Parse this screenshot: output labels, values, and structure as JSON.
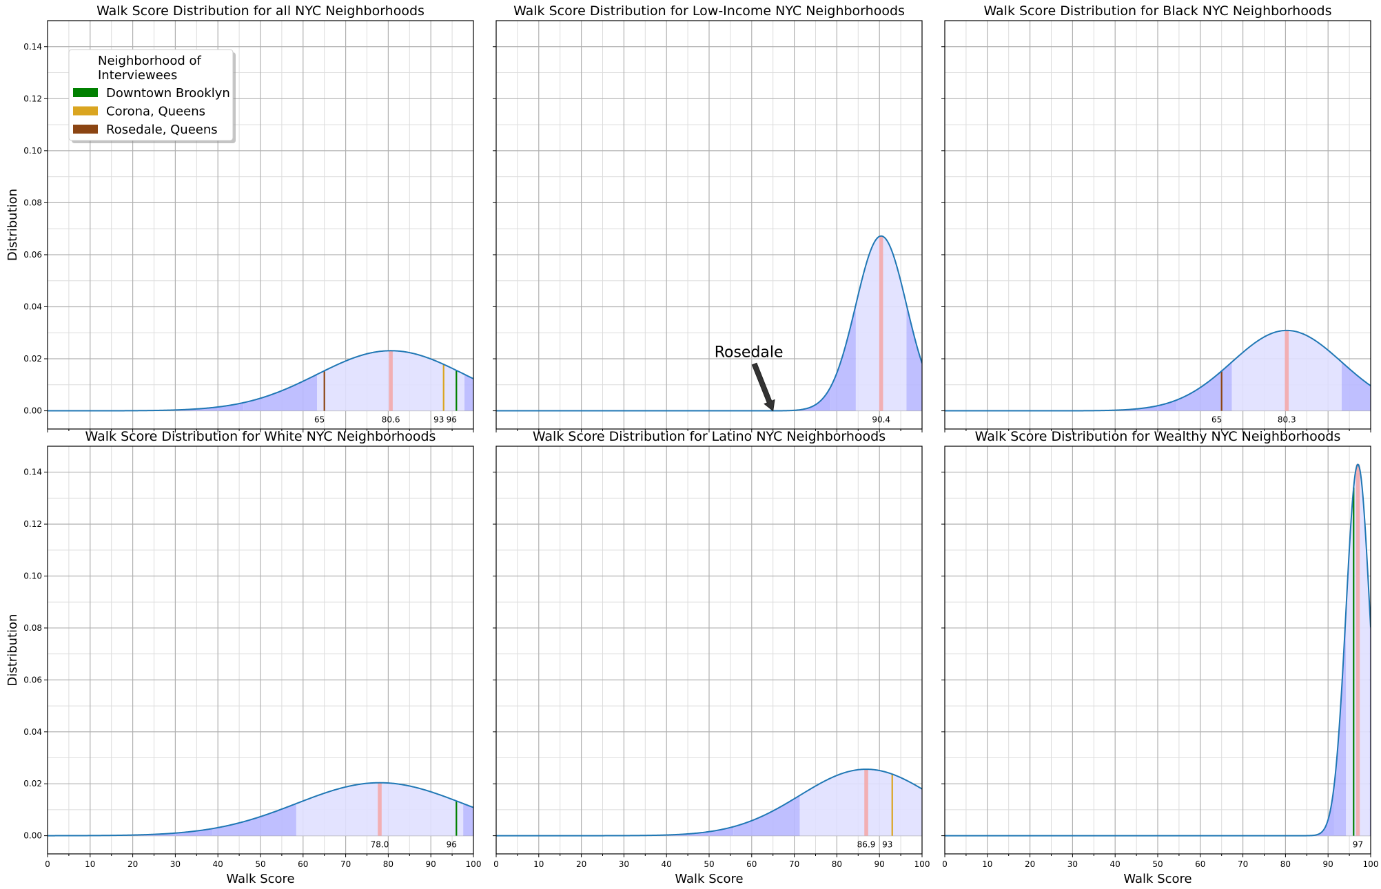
{
  "legend": {
    "title_line1": "Neighborhood of",
    "title_line2": "Interviewees",
    "placement": "upper-left of first panel",
    "entries": [
      {
        "label": "Downtown Brooklyn",
        "color": "#008000"
      },
      {
        "label": "Corona, Queens",
        "color": "#DAA520"
      },
      {
        "label": "Rosedale, Queens",
        "color": "#8B4513"
      }
    ]
  },
  "colors": {
    "curve": "#1f77b4",
    "fill_inner": "#e0e0ff",
    "fill_outer": "#b8b8ff",
    "mean_band": "#f4a6a6"
  },
  "chart_data": [
    {
      "type": "area",
      "title": "Walk Score Distribution for all NYC Neighborhoods",
      "xlabel": "",
      "ylabel": "Distribution",
      "xlim": [
        0,
        100
      ],
      "ylim": [
        -0.007,
        0.15
      ],
      "xticks": [
        0,
        10,
        20,
        30,
        40,
        50,
        60,
        70,
        80,
        90,
        100
      ],
      "yticks": [
        0.0,
        0.02,
        0.04,
        0.06,
        0.08,
        0.1,
        0.12,
        0.14
      ],
      "grid": true,
      "distribution": {
        "mean": 80.6,
        "sd": 17.3,
        "peak": 0.0231,
        "band_edges": [
          46.0,
          63.3,
          97.9
        ]
      },
      "mean_label": "80.6",
      "markers": [
        {
          "x": 65,
          "label": "65",
          "color": "#8B4513"
        },
        {
          "x": 93,
          "label": "93",
          "color": "#DAA520"
        },
        {
          "x": 96,
          "label": "96",
          "color": "#008000"
        }
      ],
      "show_xtick_labels": false,
      "show_ytick_labels": true
    },
    {
      "type": "area",
      "title": "Walk Score Distribution for Low-Income NYC Neighborhoods",
      "xlabel": "",
      "ylabel": "",
      "xlim": [
        0,
        100
      ],
      "ylim": [
        -0.007,
        0.15
      ],
      "xticks": [
        0,
        10,
        20,
        30,
        40,
        50,
        60,
        70,
        80,
        90,
        100
      ],
      "yticks": [
        0.0,
        0.02,
        0.04,
        0.06,
        0.08,
        0.1,
        0.12,
        0.14
      ],
      "grid": true,
      "distribution": {
        "mean": 90.4,
        "sd": 5.95,
        "peak": 0.0672,
        "band_edges": [
          78.5,
          84.45,
          96.35
        ]
      },
      "mean_label": "90.4",
      "markers": [],
      "annotation": {
        "text": "Rosedale",
        "x": 65,
        "y": 0.0
      },
      "show_xtick_labels": false,
      "show_ytick_labels": false
    },
    {
      "type": "area",
      "title": "Walk Score Distribution for Black NYC Neighborhoods",
      "xlabel": "",
      "ylabel": "",
      "xlim": [
        0,
        100
      ],
      "ylim": [
        -0.007,
        0.15
      ],
      "xticks": [
        0,
        10,
        20,
        30,
        40,
        50,
        60,
        70,
        80,
        90,
        100
      ],
      "yticks": [
        0.0,
        0.02,
        0.04,
        0.06,
        0.08,
        0.1,
        0.12,
        0.14
      ],
      "grid": true,
      "distribution": {
        "mean": 80.3,
        "sd": 12.9,
        "peak": 0.0309,
        "band_edges": [
          54.5,
          67.4,
          93.2
        ]
      },
      "mean_label": "80.3",
      "markers": [
        {
          "x": 65,
          "label": "65",
          "color": "#8B4513"
        }
      ],
      "show_xtick_labels": false,
      "show_ytick_labels": false
    },
    {
      "type": "area",
      "title": "Walk Score Distribution for White NYC Neighborhoods",
      "xlabel": "Walk Score",
      "ylabel": "Distribution",
      "xlim": [
        0,
        100
      ],
      "ylim": [
        -0.007,
        0.15
      ],
      "xticks": [
        0,
        10,
        20,
        30,
        40,
        50,
        60,
        70,
        80,
        90,
        100
      ],
      "yticks": [
        0.0,
        0.02,
        0.04,
        0.06,
        0.08,
        0.1,
        0.12,
        0.14
      ],
      "grid": true,
      "distribution": {
        "mean": 78.0,
        "sd": 19.6,
        "peak": 0.0204,
        "band_edges": [
          38.8,
          58.4,
          97.6
        ]
      },
      "mean_label": "78.0",
      "markers": [
        {
          "x": 96,
          "label": "96",
          "color": "#008000"
        }
      ],
      "show_xtick_labels": true,
      "show_ytick_labels": true
    },
    {
      "type": "area",
      "title": "Walk Score Distribution for Latino NYC Neighborhoods",
      "xlabel": "Walk Score",
      "ylabel": "",
      "xlim": [
        0,
        100
      ],
      "ylim": [
        -0.007,
        0.15
      ],
      "xticks": [
        0,
        10,
        20,
        30,
        40,
        50,
        60,
        70,
        80,
        90,
        100
      ],
      "yticks": [
        0.0,
        0.02,
        0.04,
        0.06,
        0.08,
        0.1,
        0.12,
        0.14
      ],
      "grid": true,
      "distribution": {
        "mean": 86.9,
        "sd": 15.6,
        "peak": 0.0256,
        "band_edges": [
          55.7,
          71.3,
          102.5
        ]
      },
      "mean_label": "86.9",
      "markers": [
        {
          "x": 93,
          "label": "93",
          "color": "#DAA520"
        }
      ],
      "show_xtick_labels": true,
      "show_ytick_labels": false
    },
    {
      "type": "area",
      "title": "Walk Score Distribution for Wealthy NYC Neighborhoods",
      "xlabel": "Walk Score",
      "ylabel": "",
      "xlim": [
        0,
        100
      ],
      "ylim": [
        -0.007,
        0.15
      ],
      "xticks": [
        0,
        10,
        20,
        30,
        40,
        50,
        60,
        70,
        80,
        90,
        100
      ],
      "yticks": [
        0.0,
        0.02,
        0.04,
        0.06,
        0.08,
        0.1,
        0.12,
        0.14
      ],
      "grid": true,
      "distribution": {
        "mean": 97.0,
        "sd": 2.79,
        "peak": 0.143,
        "band_edges": [
          91.42,
          94.21,
          99.79
        ]
      },
      "mean_label": "97",
      "markers": [
        {
          "x": 96,
          "label": "",
          "color": "#008000"
        }
      ],
      "show_xtick_labels": true,
      "show_ytick_labels": false
    }
  ]
}
